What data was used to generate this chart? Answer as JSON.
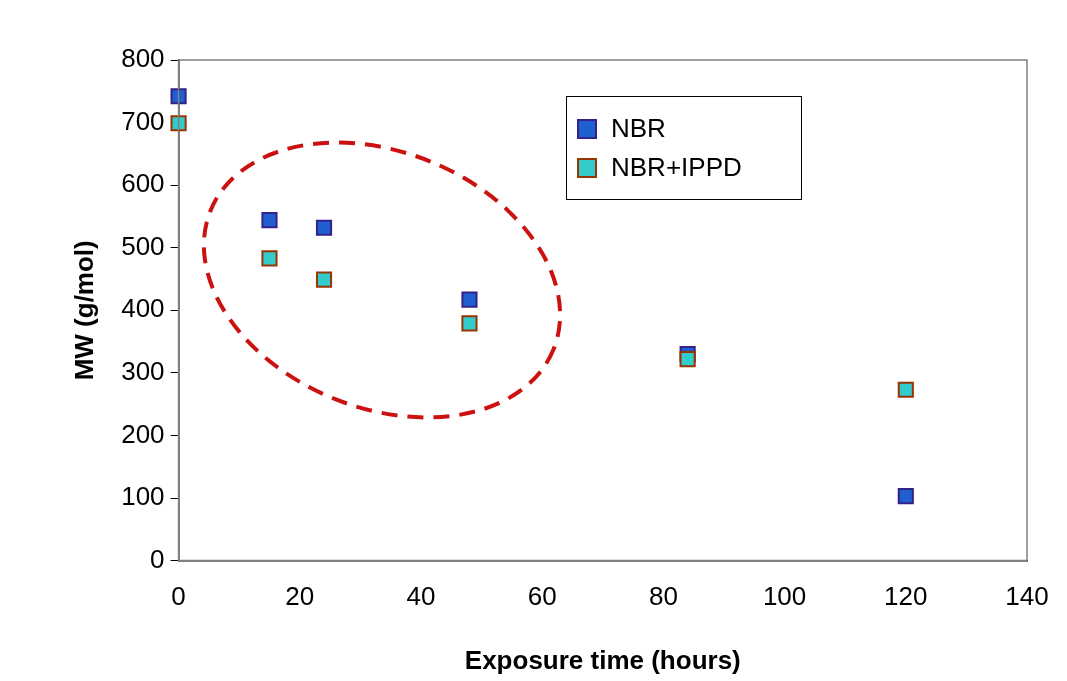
{
  "chart_data": {
    "type": "scatter",
    "xlabel": "Exposure time (hours)",
    "ylabel": "MW (g/mol)",
    "xlim": [
      0,
      140
    ],
    "xticks": [
      0,
      20,
      40,
      60,
      80,
      100,
      120,
      140
    ],
    "ylim": [
      0,
      800
    ],
    "yticks": [
      0,
      100,
      200,
      300,
      400,
      500,
      600,
      700,
      800
    ],
    "grid": false,
    "legend": "top right",
    "marker": "square",
    "series": [
      {
        "name": "NBR",
        "color": "#1f5fd0",
        "x": [
          0,
          15,
          24,
          48,
          84,
          120
        ],
        "values": [
          742,
          544,
          532,
          417,
          330,
          103
        ]
      },
      {
        "name": "NBR+IPPD",
        "color": "#33cccc",
        "x": [
          0,
          15,
          24,
          48,
          84,
          120
        ],
        "values": [
          699,
          483,
          449,
          379,
          322,
          273
        ]
      }
    ]
  }
}
